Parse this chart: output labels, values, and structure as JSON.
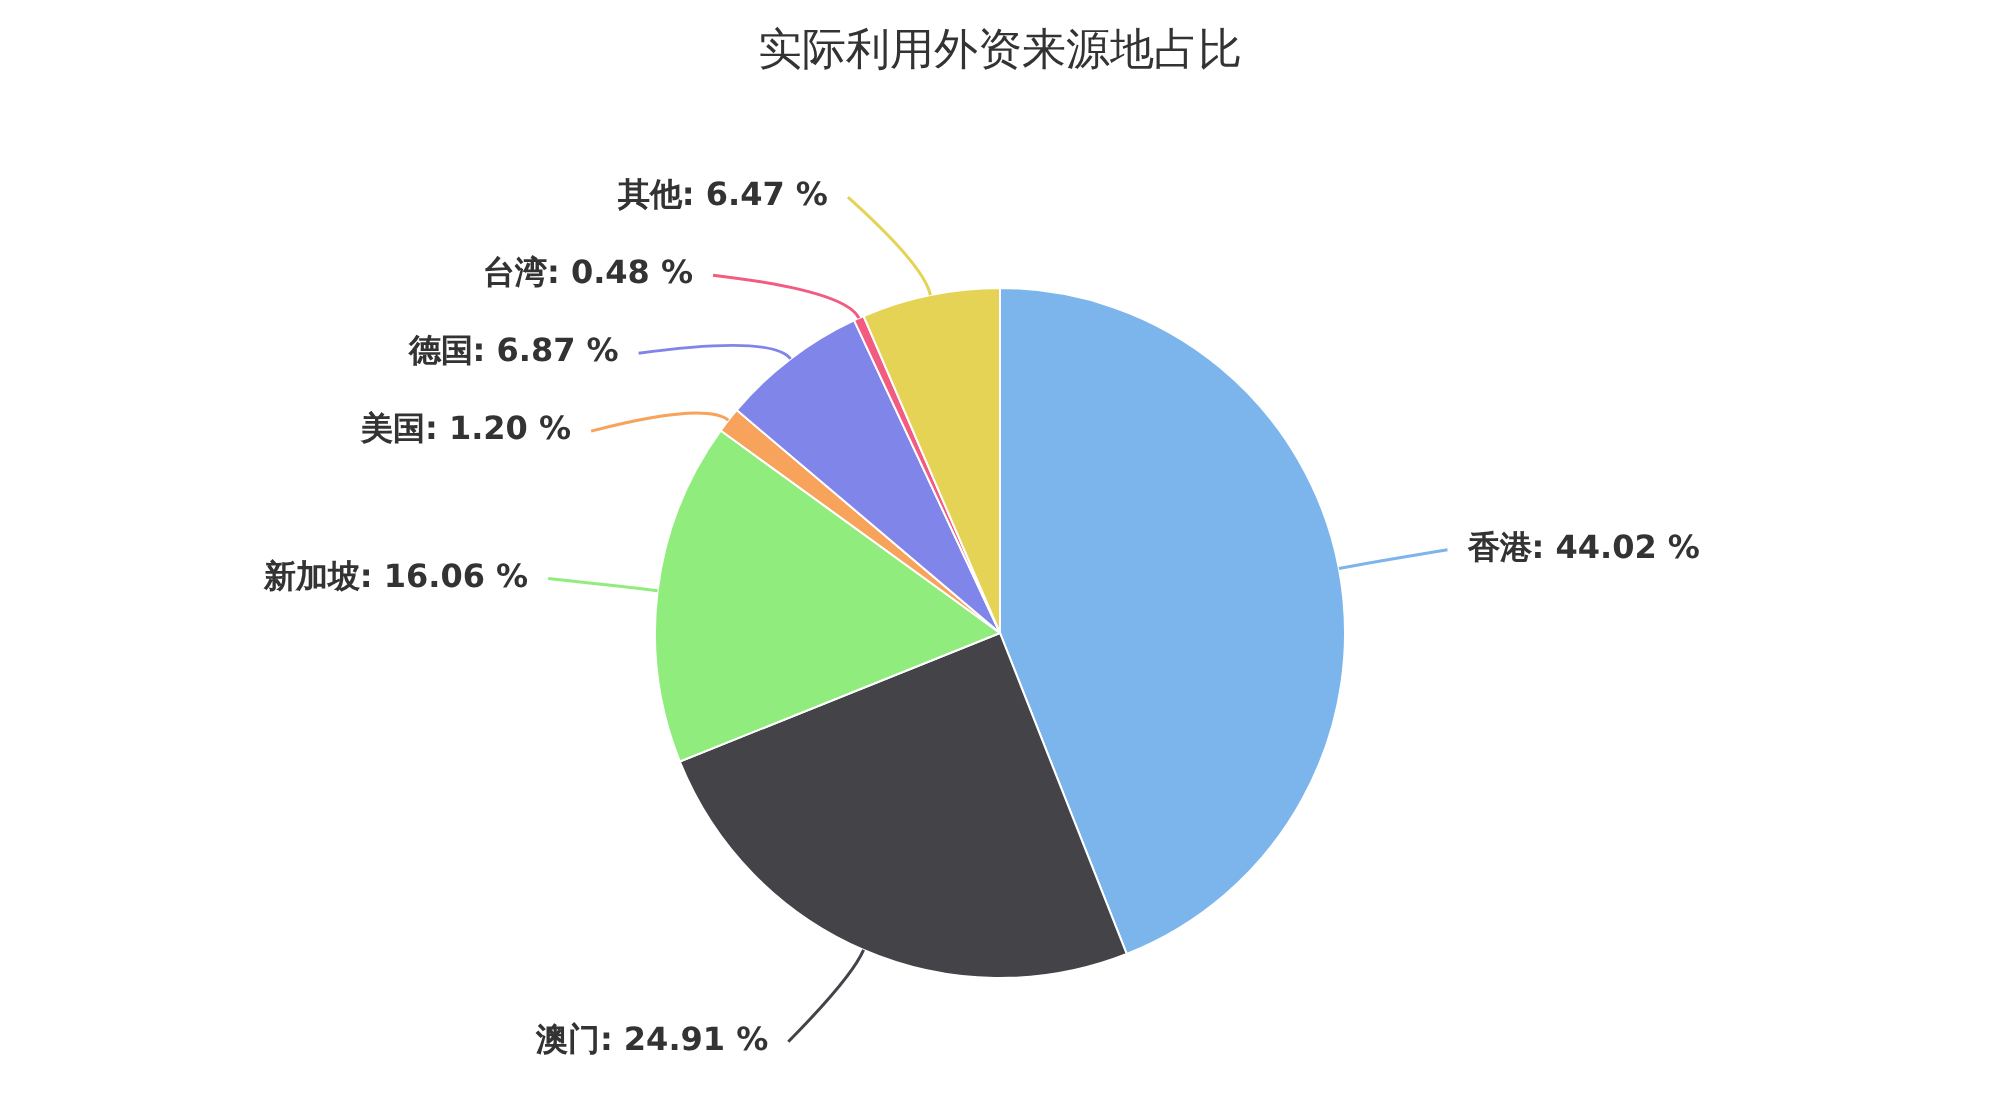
{
  "chart_data": {
    "type": "pie",
    "title": "实际利用外资来源地占比",
    "categories": [
      "香港",
      "澳门",
      "新加坡",
      "美国",
      "德国",
      "台湾",
      "其他"
    ],
    "values": [
      44.02,
      24.91,
      16.06,
      1.2,
      6.87,
      0.48,
      6.47
    ],
    "colors": [
      "#7cb5ec",
      "#434348",
      "#90ed7d",
      "#f7a35c",
      "#8085e9",
      "#f15c80",
      "#e4d354"
    ],
    "value_labels": [
      "44.02 %",
      "24.91 %",
      "16.06 %",
      "1.20 %",
      "6.87 %",
      "0.48 %",
      "6.47 %"
    ],
    "legend": false
  }
}
